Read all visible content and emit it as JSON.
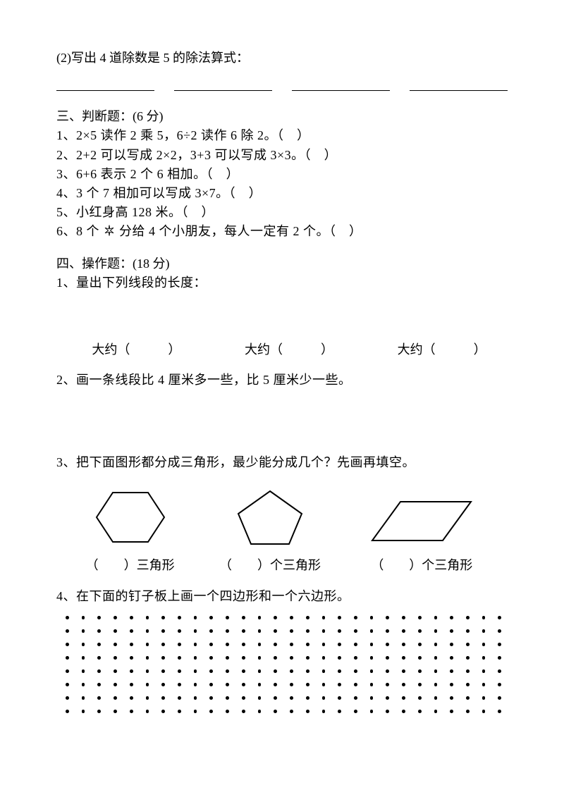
{
  "q2": {
    "prompt": "(2)写出 4 道除数是 5 的除法算式："
  },
  "section3": {
    "title": "三、判断题：(6 分)",
    "items": [
      "1、2×5 读作 2 乘 5，6÷2 读作 6 除 2。（　）",
      "2、2+2 可以写成 2×2，3+3 可以写成 3×3。（　）",
      "3、6+6 表示 2 个 6 相加。（　）",
      "4、3 个 7 相加可以写成 3×7。（　）",
      "5、小红身高 128 米。（　）",
      "6、8 个　　分给 4 个小朋友，每人一定有 2 个。（　）"
    ],
    "star_index": 5
  },
  "section4": {
    "title": "四、操作题：(18 分)",
    "q1": "1、量出下列线段的长度：",
    "approx": "大约（　　　）",
    "q2": "2、画一条线段比 4 厘米多一些，比 5 厘米少一些。",
    "q3": "3、把下面图形都分成三角形，最少能分成几个？先画再填空。",
    "shape_labels": [
      "（　　）三角形",
      "（　　）个三角形",
      "（　　）个三角形"
    ],
    "q4": "4、在下面的钉子板上画一个四边形和一个六边形。"
  },
  "dot_grid": {
    "rows": 8,
    "cols": 28
  },
  "colors": {
    "text": "#000000",
    "bg": "#ffffff"
  }
}
